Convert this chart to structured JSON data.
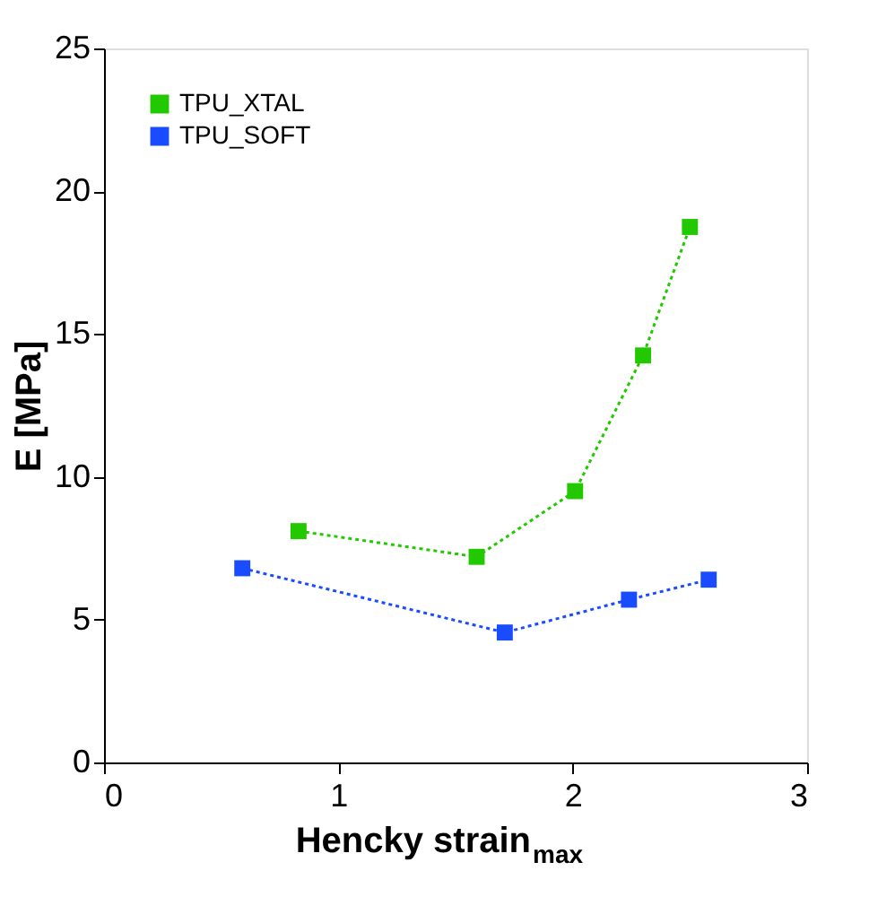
{
  "chart_data": {
    "type": "line",
    "xlabel": "Hencky strain$_{max}$",
    "ylabel": "E [MPa]",
    "xlim": [
      0,
      3
    ],
    "xticks": [
      0,
      1,
      2,
      3
    ],
    "ylim": [
      0,
      25
    ],
    "yticks": [
      0,
      5,
      10,
      15,
      20,
      25
    ],
    "grid": false,
    "legend": "top left",
    "marker": "square",
    "line_style": "dotted",
    "series": [
      {
        "name": "TPU_XTAL",
        "color": "#22c800",
        "x": [
          0.83,
          1.59,
          2.01,
          2.3,
          2.5
        ],
        "values": [
          8.1,
          7.2,
          9.5,
          14.25,
          18.75
        ]
      },
      {
        "name": "TPU_SOFT",
        "color": "#1a4cff",
        "x": [
          0.59,
          1.71,
          2.24,
          2.58
        ],
        "values": [
          6.8,
          4.55,
          5.7,
          6.4
        ]
      }
    ]
  }
}
